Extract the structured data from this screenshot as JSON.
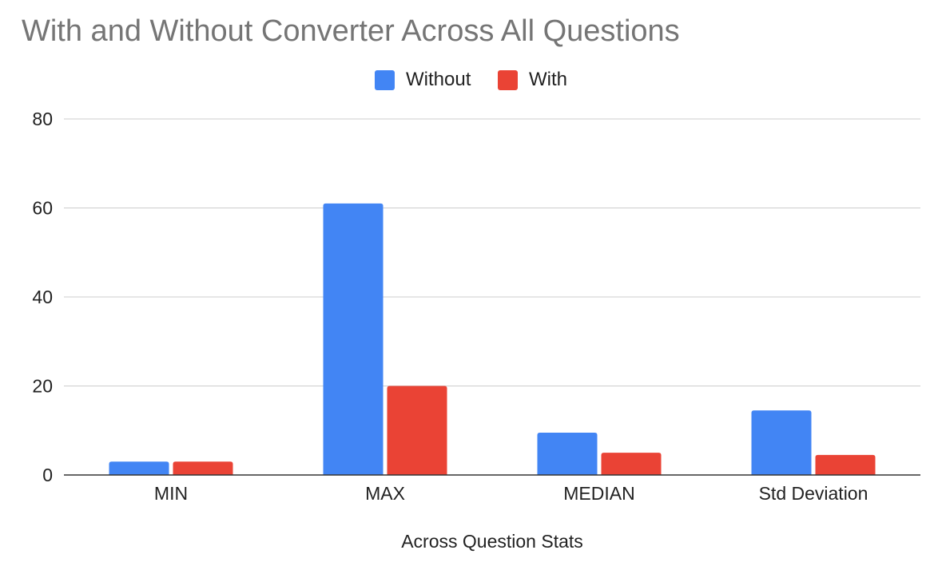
{
  "chart_data": {
    "type": "bar",
    "title": "With and Without Converter Across All Questions",
    "xlabel": "Across Question Stats",
    "ylabel": "",
    "categories": [
      "MIN",
      "MAX",
      "MEDIAN",
      "Std Deviation"
    ],
    "series": [
      {
        "name": "Without",
        "color": "#4285F4",
        "values": [
          3,
          61,
          9.5,
          14.5
        ]
      },
      {
        "name": "With",
        "color": "#EA4335",
        "values": [
          3,
          20,
          5,
          4.5
        ]
      }
    ],
    "ylim": [
      0,
      80
    ],
    "yticks": [
      0,
      20,
      40,
      60,
      80
    ],
    "grid": true,
    "legend_position": "top"
  }
}
